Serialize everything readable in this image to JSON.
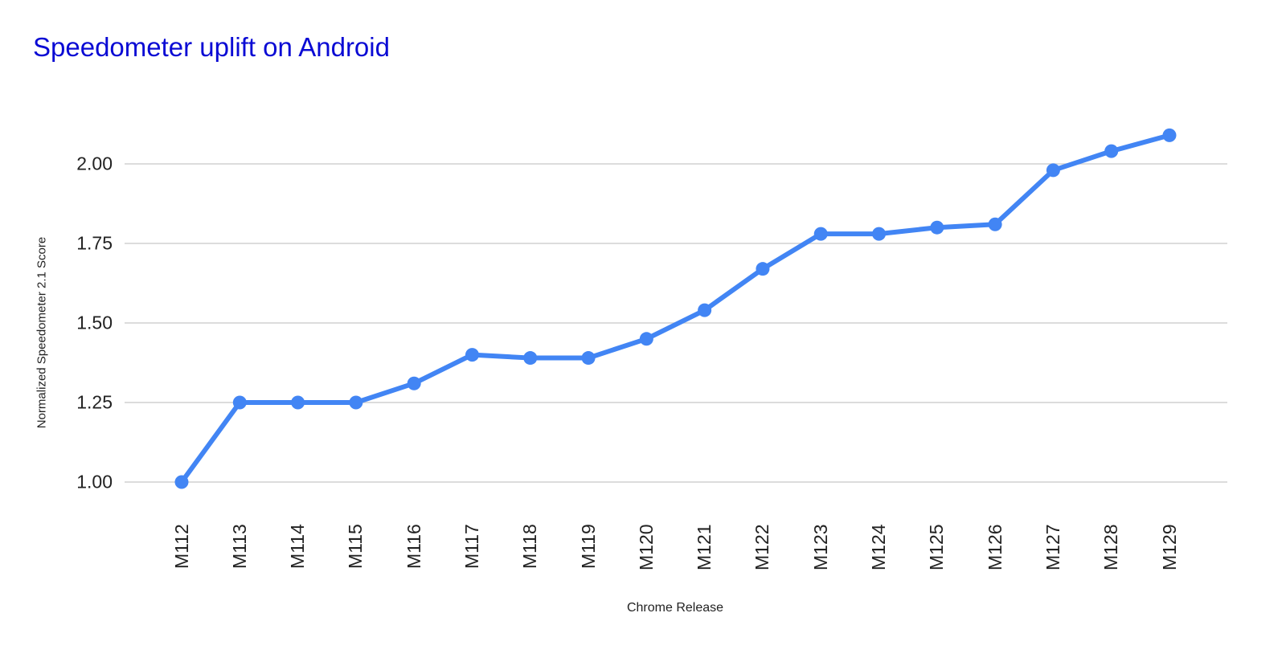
{
  "chart": {
    "title": "Speedometer uplift on Android",
    "title_color": "#0a0ad4",
    "line_color": "#4285f4",
    "gridline_color": "#d0d0d0"
  },
  "chart_data": {
    "type": "line",
    "title": "Speedometer uplift on Android",
    "xlabel": "Chrome Release",
    "ylabel": "Normalized Speedometer 2.1 Score",
    "categories": [
      "M112",
      "M113",
      "M114",
      "M115",
      "M116",
      "M117",
      "M118",
      "M119",
      "M120",
      "M121",
      "M122",
      "M123",
      "M124",
      "M125",
      "M126",
      "M127",
      "M128",
      "M129"
    ],
    "series": [
      {
        "name": "Normalized Speedometer 2.1 Score",
        "values": [
          1.0,
          1.25,
          1.25,
          1.25,
          1.31,
          1.4,
          1.39,
          1.39,
          1.45,
          1.54,
          1.67,
          1.78,
          1.78,
          1.8,
          1.81,
          1.98,
          2.04,
          2.09
        ],
        "color": "#4285f4",
        "markers": true
      }
    ],
    "yticks": [
      "1.00",
      "1.25",
      "1.50",
      "1.75",
      "2.00"
    ],
    "ytick_values": [
      1.0,
      1.25,
      1.5,
      1.75,
      2.0
    ],
    "ylim": [
      1.0,
      2.0
    ],
    "grid": true,
    "legend": "none",
    "x_tick_rotation": -90
  }
}
